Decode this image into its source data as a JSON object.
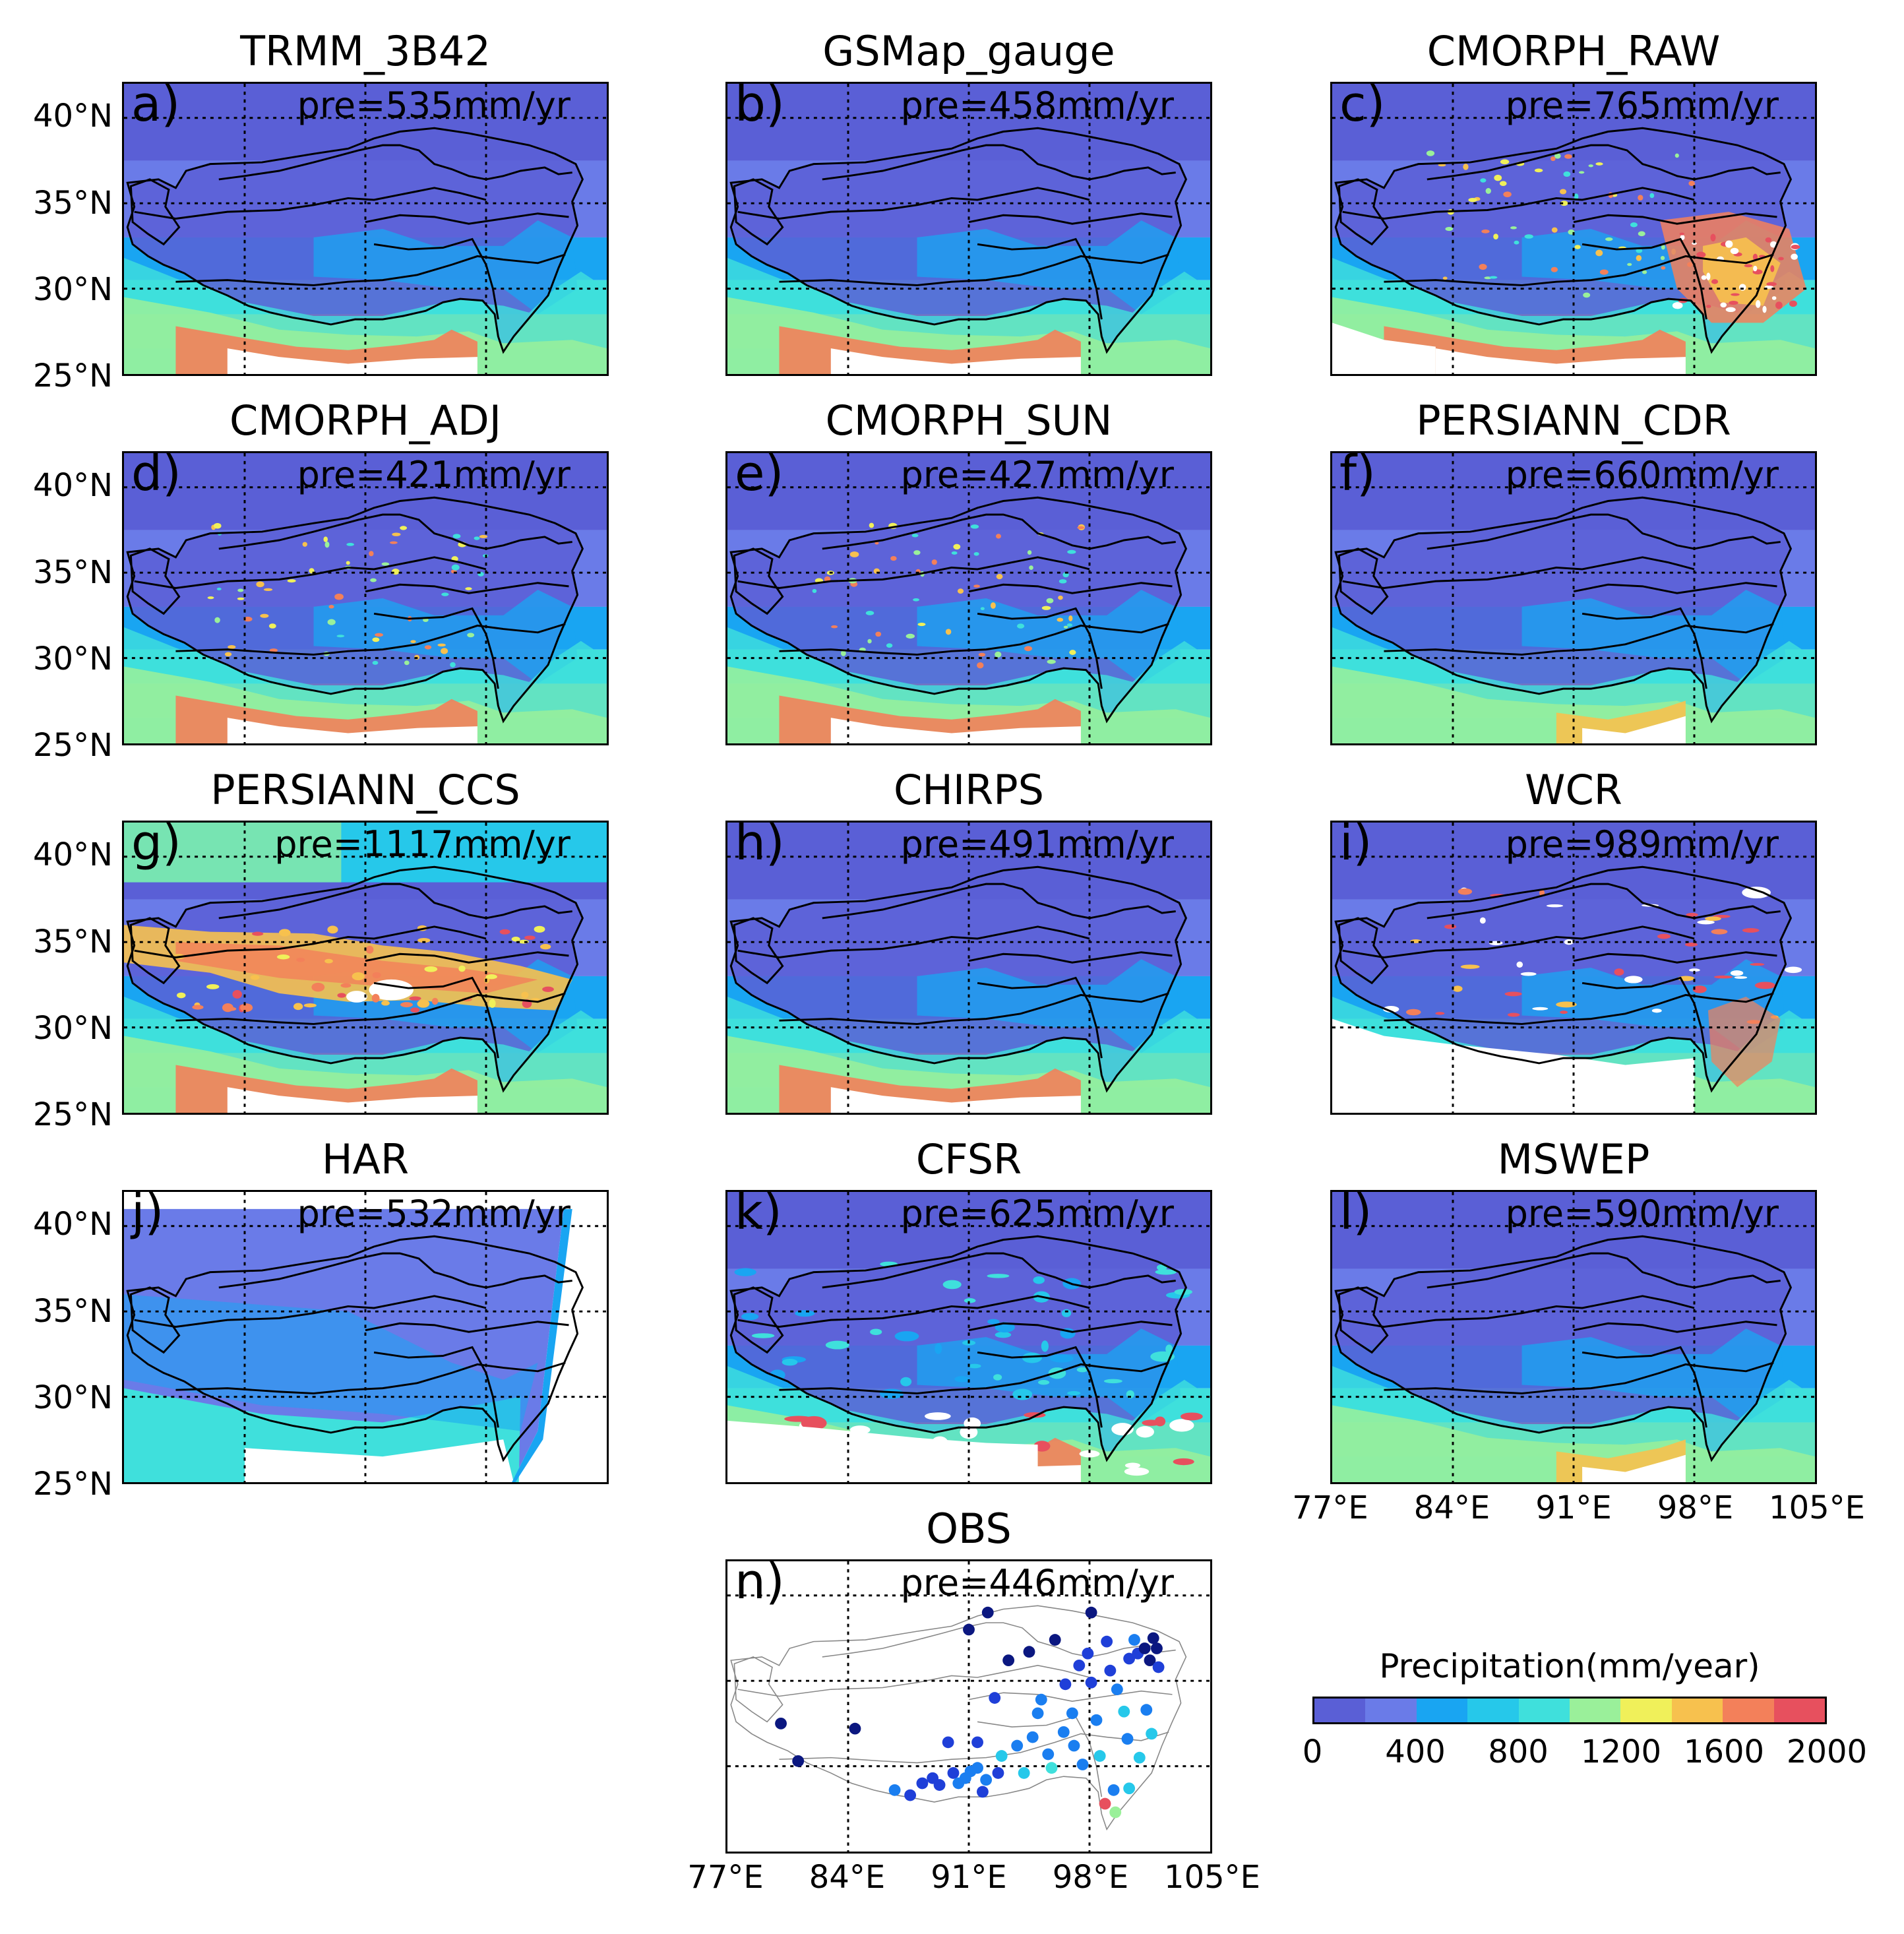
{
  "figure": {
    "colorbar": {
      "title": "Precipitation(mm/year)",
      "ticks": [
        "0",
        "400",
        "800",
        "1200",
        "1600",
        "2000"
      ],
      "levels": [
        0,
        200,
        400,
        600,
        800,
        1000,
        1200,
        1400,
        1600,
        1800,
        2000
      ],
      "colors": [
        "#5a5fd6",
        "#6a7be8",
        "#19a5f2",
        "#26c8ea",
        "#3fe0dc",
        "#9af09a",
        "#f0f05a",
        "#f7c14e",
        "#f3805a",
        "#e7505e"
      ]
    },
    "lat_labels": [
      "40°N",
      "35°N",
      "30°N",
      "25°N"
    ],
    "lon_labels": [
      "77°E",
      "84°E",
      "91°E",
      "98°E",
      "105°E"
    ],
    "panels": [
      {
        "letter": "a)",
        "title": "TRMM_3B42",
        "pre": "pre=535mm/yr",
        "style": "low-north"
      },
      {
        "letter": "b)",
        "title": "GSMap_gauge",
        "pre": "pre=458mm/yr",
        "style": "low-north"
      },
      {
        "letter": "c)",
        "title": "CMORPH_RAW",
        "pre": "pre=765mm/yr",
        "style": "spotty-hot"
      },
      {
        "letter": "d)",
        "title": "CMORPH_ADJ",
        "pre": "pre=421mm/yr",
        "style": "spotty"
      },
      {
        "letter": "e)",
        "title": "CMORPH_SUN",
        "pre": "pre=427mm/yr",
        "style": "spotty"
      },
      {
        "letter": "f)",
        "title": "PERSIANN_CDR",
        "pre": "pre=660mm/yr",
        "style": "smooth"
      },
      {
        "letter": "g)",
        "title": "PERSIANN_CCS",
        "pre": "pre=1117mm/yr",
        "style": "hot-center"
      },
      {
        "letter": "h)",
        "title": "CHIRPS",
        "pre": "pre=491mm/yr",
        "style": "low-north"
      },
      {
        "letter": "i)",
        "title": "WCR",
        "pre": "pre=989mm/yr",
        "style": "wcr"
      },
      {
        "letter": "j)",
        "title": "HAR",
        "pre": "pre=532mm/yr",
        "style": "har"
      },
      {
        "letter": "k)",
        "title": "CFSR",
        "pre": "pre=625mm/yr",
        "style": "cfsr"
      },
      {
        "letter": "l)",
        "title": "MSWEP",
        "pre": "pre=590mm/yr",
        "style": "smooth"
      },
      {
        "letter": "n)",
        "title": "OBS",
        "pre": "pre=446mm/yr",
        "style": "obs"
      }
    ],
    "obs_stations": [
      {
        "lon": 80.1,
        "lat": 32.5,
        "mm": 150
      },
      {
        "lon": 81.1,
        "lat": 30.3,
        "mm": 120
      },
      {
        "lon": 84.4,
        "lat": 32.2,
        "mm": 180
      },
      {
        "lon": 86.7,
        "lat": 28.6,
        "mm": 500
      },
      {
        "lon": 87.6,
        "lat": 28.3,
        "mm": 300
      },
      {
        "lon": 88.3,
        "lat": 29.0,
        "mm": 280
      },
      {
        "lon": 88.9,
        "lat": 29.3,
        "mm": 300
      },
      {
        "lon": 89.3,
        "lat": 28.9,
        "mm": 360
      },
      {
        "lon": 89.8,
        "lat": 31.4,
        "mm": 250
      },
      {
        "lon": 90.1,
        "lat": 29.6,
        "mm": 330
      },
      {
        "lon": 90.4,
        "lat": 29.0,
        "mm": 420
      },
      {
        "lon": 90.8,
        "lat": 29.3,
        "mm": 400
      },
      {
        "lon": 91.1,
        "lat": 29.7,
        "mm": 440
      },
      {
        "lon": 91.0,
        "lat": 38.0,
        "mm": 160
      },
      {
        "lon": 91.5,
        "lat": 29.9,
        "mm": 480
      },
      {
        "lon": 91.5,
        "lat": 31.4,
        "mm": 360
      },
      {
        "lon": 91.8,
        "lat": 28.5,
        "mm": 380
      },
      {
        "lon": 92.0,
        "lat": 29.2,
        "mm": 520
      },
      {
        "lon": 92.1,
        "lat": 39.0,
        "mm": 170
      },
      {
        "lon": 92.5,
        "lat": 34.0,
        "mm": 300
      },
      {
        "lon": 92.7,
        "lat": 29.6,
        "mm": 300
      },
      {
        "lon": 92.9,
        "lat": 30.6,
        "mm": 620
      },
      {
        "lon": 93.3,
        "lat": 36.2,
        "mm": 60
      },
      {
        "lon": 93.8,
        "lat": 31.2,
        "mm": 460
      },
      {
        "lon": 94.2,
        "lat": 29.6,
        "mm": 680
      },
      {
        "lon": 94.5,
        "lat": 36.7,
        "mm": 100
      },
      {
        "lon": 94.7,
        "lat": 31.7,
        "mm": 510
      },
      {
        "lon": 95.0,
        "lat": 33.1,
        "mm": 450
      },
      {
        "lon": 95.2,
        "lat": 33.9,
        "mm": 410
      },
      {
        "lon": 95.6,
        "lat": 30.7,
        "mm": 590
      },
      {
        "lon": 95.8,
        "lat": 29.9,
        "mm": 900
      },
      {
        "lon": 96.0,
        "lat": 37.4,
        "mm": 160
      },
      {
        "lon": 96.5,
        "lat": 32.0,
        "mm": 480
      },
      {
        "lon": 96.6,
        "lat": 34.8,
        "mm": 300
      },
      {
        "lon": 97.0,
        "lat": 33.1,
        "mm": 530
      },
      {
        "lon": 97.1,
        "lat": 31.2,
        "mm": 450
      },
      {
        "lon": 97.4,
        "lat": 35.9,
        "mm": 220
      },
      {
        "lon": 97.6,
        "lat": 30.1,
        "mm": 480
      },
      {
        "lon": 97.9,
        "lat": 36.6,
        "mm": 300
      },
      {
        "lon": 98.1,
        "lat": 34.9,
        "mm": 260
      },
      {
        "lon": 98.1,
        "lat": 39.0,
        "mm": 90
      },
      {
        "lon": 98.4,
        "lat": 32.7,
        "mm": 460
      },
      {
        "lon": 98.6,
        "lat": 30.6,
        "mm": 690
      },
      {
        "lon": 98.9,
        "lat": 27.8,
        "mm": 1900
      },
      {
        "lon": 99.0,
        "lat": 37.3,
        "mm": 380
      },
      {
        "lon": 99.2,
        "lat": 35.6,
        "mm": 320
      },
      {
        "lon": 99.4,
        "lat": 28.6,
        "mm": 550
      },
      {
        "lon": 99.5,
        "lat": 27.3,
        "mm": 1000
      },
      {
        "lon": 99.6,
        "lat": 34.5,
        "mm": 440
      },
      {
        "lon": 100.0,
        "lat": 33.2,
        "mm": 600
      },
      {
        "lon": 100.2,
        "lat": 31.6,
        "mm": 520
      },
      {
        "lon": 100.3,
        "lat": 36.3,
        "mm": 380
      },
      {
        "lon": 100.3,
        "lat": 28.7,
        "mm": 730
      },
      {
        "lon": 100.6,
        "lat": 37.4,
        "mm": 420
      },
      {
        "lon": 100.8,
        "lat": 36.6,
        "mm": 250
      },
      {
        "lon": 100.9,
        "lat": 30.5,
        "mm": 620
      },
      {
        "lon": 101.2,
        "lat": 36.9,
        "mm": 150
      },
      {
        "lon": 101.3,
        "lat": 33.3,
        "mm": 560
      },
      {
        "lon": 101.5,
        "lat": 36.2,
        "mm": 160
      },
      {
        "lon": 101.7,
        "lat": 37.5,
        "mm": 90
      },
      {
        "lon": 101.9,
        "lat": 36.9,
        "mm": 120
      },
      {
        "lon": 102.0,
        "lat": 35.8,
        "mm": 300
      },
      {
        "lon": 101.6,
        "lat": 31.9,
        "mm": 650
      }
    ]
  }
}
